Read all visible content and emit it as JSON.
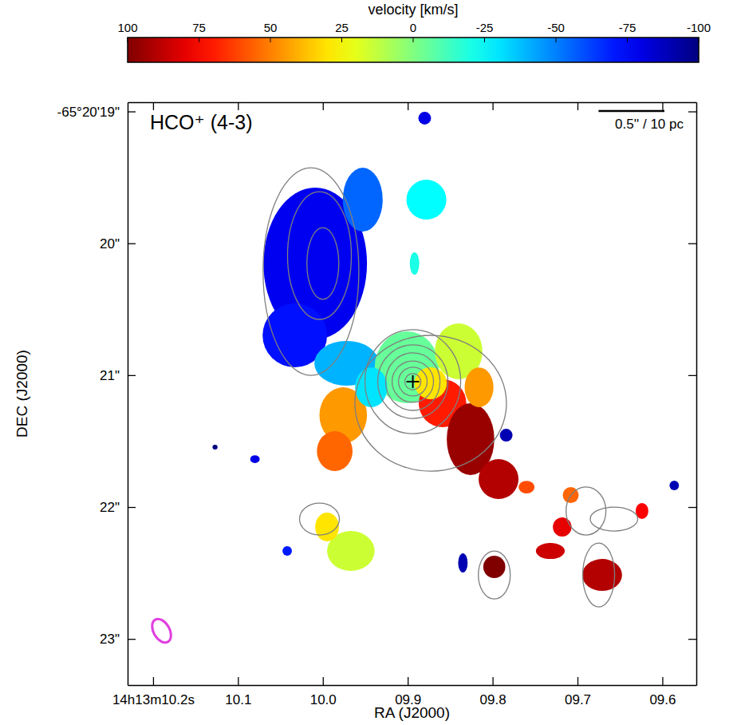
{
  "chart_data": {
    "type": "map",
    "title": "HCO⁺ (4-3)",
    "x_label": "RA (J2000)",
    "y_label": "DEC (J2000)",
    "xlim": [
      10.23,
      9.56
    ],
    "xticks": [
      {
        "value": 10.2,
        "label": "14h13m10.2s"
      },
      {
        "value": 10.1,
        "label": "10.1"
      },
      {
        "value": 10.0,
        "label": "10.0"
      },
      {
        "value": 9.9,
        "label": "09.9"
      },
      {
        "value": 9.8,
        "label": "09.8"
      },
      {
        "value": 9.7,
        "label": "09.7"
      },
      {
        "value": 9.6,
        "label": "09.6"
      }
    ],
    "ylim": [
      18.93,
      23.35
    ],
    "yticks": [
      {
        "value": 19,
        "label": "-65°20'19\""
      },
      {
        "value": 20,
        "label": "20\""
      },
      {
        "value": 21,
        "label": "21\""
      },
      {
        "value": 22,
        "label": "22\""
      },
      {
        "value": 23,
        "label": "23\""
      }
    ],
    "colorbar": {
      "label": "velocity [km/s]",
      "lim": [
        100,
        -100
      ],
      "ticks": [
        100,
        75,
        50,
        25,
        0,
        -25,
        -50,
        -75,
        -100
      ]
    },
    "scale_bar": {
      "length": 0.5,
      "label": "0.5'' / 10 pc"
    },
    "center": {
      "ra": 9.894,
      "dec": 21.049
    },
    "beam": {
      "ra": 10.19,
      "dec": 22.938,
      "dra": 0.0094,
      "ddec": 0.097,
      "color": "#e040e0"
    },
    "blobs": [
      {
        "ra": 10.009,
        "dec": 20.153,
        "dra": 0.061,
        "ddec": 0.575,
        "velocity": -78
      },
      {
        "ra": 9.953,
        "dec": 19.669,
        "dra": 0.0235,
        "ddec": 0.242,
        "velocity": -55
      },
      {
        "ra": 10.033,
        "dec": 20.698,
        "dra": 0.038,
        "ddec": 0.242,
        "velocity": -72
      },
      {
        "ra": 9.972,
        "dec": 20.91,
        "dra": 0.038,
        "ddec": 0.17,
        "velocity": -40
      },
      {
        "ra": 9.878,
        "dec": 19.669,
        "dra": 0.0235,
        "ddec": 0.151,
        "velocity": -25
      },
      {
        "ra": 9.976,
        "dec": 21.304,
        "dra": 0.028,
        "ddec": 0.212,
        "velocity": 45
      },
      {
        "ra": 9.986,
        "dec": 21.576,
        "dra": 0.021,
        "ddec": 0.151,
        "velocity": 55
      },
      {
        "ra": 9.901,
        "dec": 20.94,
        "dra": 0.038,
        "ddec": 0.272,
        "velocity": -5
      },
      {
        "ra": 9.84,
        "dec": 20.819,
        "dra": 0.028,
        "ddec": 0.212,
        "velocity": 15
      },
      {
        "ra": 9.943,
        "dec": 21.092,
        "dra": 0.019,
        "ddec": 0.151,
        "velocity": -30
      },
      {
        "ra": 9.859,
        "dec": 21.213,
        "dra": 0.028,
        "ddec": 0.182,
        "velocity": 70
      },
      {
        "ra": 9.826,
        "dec": 21.485,
        "dra": 0.028,
        "ddec": 0.272,
        "velocity": 95
      },
      {
        "ra": 9.793,
        "dec": 21.788,
        "dra": 0.0235,
        "ddec": 0.151,
        "velocity": 90
      },
      {
        "ra": 9.816,
        "dec": 21.092,
        "dra": 0.017,
        "ddec": 0.151,
        "velocity": 45
      },
      {
        "ra": 9.873,
        "dec": 21.061,
        "dra": 0.019,
        "ddec": 0.121,
        "velocity": 30
      },
      {
        "ra": 9.967,
        "dec": 22.333,
        "dra": 0.028,
        "ddec": 0.151,
        "velocity": 15
      },
      {
        "ra": 9.995,
        "dec": 22.151,
        "dra": 0.014,
        "ddec": 0.109,
        "velocity": 30
      },
      {
        "ra": 9.798,
        "dec": 22.454,
        "dra": 0.013,
        "ddec": 0.085,
        "velocity": 100
      },
      {
        "ra": 9.671,
        "dec": 22.515,
        "dra": 0.0235,
        "ddec": 0.121,
        "velocity": 90
      },
      {
        "ra": 9.718,
        "dec": 22.151,
        "dra": 0.011,
        "ddec": 0.073,
        "velocity": 80
      },
      {
        "ra": 9.708,
        "dec": 21.909,
        "dra": 0.0094,
        "ddec": 0.061,
        "velocity": 55
      },
      {
        "ra": 9.892,
        "dec": 20.153,
        "dra": 0.0056,
        "ddec": 0.085,
        "velocity": -20
      },
      {
        "ra": 9.88,
        "dec": 19.051,
        "dra": 0.0075,
        "ddec": 0.048,
        "velocity": -80
      },
      {
        "ra": 9.784,
        "dec": 21.455,
        "dra": 0.0075,
        "ddec": 0.048,
        "velocity": -90
      },
      {
        "ra": 9.76,
        "dec": 21.849,
        "dra": 0.0094,
        "ddec": 0.048,
        "velocity": 60
      },
      {
        "ra": 9.586,
        "dec": 21.836,
        "dra": 0.0056,
        "ddec": 0.036,
        "velocity": -90
      },
      {
        "ra": 9.624,
        "dec": 22.03,
        "dra": 0.0075,
        "ddec": 0.061,
        "velocity": 75
      },
      {
        "ra": 9.835,
        "dec": 22.424,
        "dra": 0.0056,
        "ddec": 0.073,
        "velocity": -90
      },
      {
        "ra": 10.042,
        "dec": 22.333,
        "dra": 0.0056,
        "ddec": 0.036,
        "velocity": -70
      },
      {
        "ra": 10.08,
        "dec": 21.637,
        "dra": 0.0056,
        "ddec": 0.03,
        "velocity": -80
      },
      {
        "ra": 9.732,
        "dec": 22.333,
        "dra": 0.017,
        "ddec": 0.061,
        "velocity": 85
      },
      {
        "ra": 10.127,
        "dec": 21.546,
        "dra": 0.003,
        "ddec": 0.018,
        "velocity": -100
      }
    ],
    "contours": [
      {
        "ra": 10.014,
        "dec": 20.214,
        "dra": 0.0564,
        "ddec": 0.787
      },
      {
        "ra": 10.004,
        "dec": 20.093,
        "dra": 0.0376,
        "ddec": 0.484
      },
      {
        "ra": 10.0,
        "dec": 20.153,
        "dra": 0.0188,
        "ddec": 0.272
      },
      {
        "ra": 9.873,
        "dec": 21.213,
        "dra": 0.0893,
        "ddec": 0.515
      },
      {
        "ra": 9.894,
        "dec": 21.049,
        "dra": 0.0564,
        "ddec": 0.394
      },
      {
        "ra": 9.894,
        "dec": 21.049,
        "dra": 0.0414,
        "ddec": 0.279
      },
      {
        "ra": 9.894,
        "dec": 21.049,
        "dra": 0.032,
        "ddec": 0.218
      },
      {
        "ra": 9.894,
        "dec": 21.049,
        "dra": 0.0244,
        "ddec": 0.157
      },
      {
        "ra": 9.894,
        "dec": 21.049,
        "dra": 0.0169,
        "ddec": 0.109
      },
      {
        "ra": 9.894,
        "dec": 21.049,
        "dra": 0.0094,
        "ddec": 0.061
      },
      {
        "ra": 9.675,
        "dec": 22.515,
        "dra": 0.0188,
        "ddec": 0.242
      },
      {
        "ra": 9.69,
        "dec": 22.03,
        "dra": 0.0235,
        "ddec": 0.182
      },
      {
        "ra": 9.798,
        "dec": 22.515,
        "dra": 0.0188,
        "ddec": 0.182
      },
      {
        "ra": 10.004,
        "dec": 22.091,
        "dra": 0.0235,
        "ddec": 0.121
      },
      {
        "ra": 9.657,
        "dec": 22.091,
        "dra": 0.028,
        "ddec": 0.091
      }
    ]
  }
}
